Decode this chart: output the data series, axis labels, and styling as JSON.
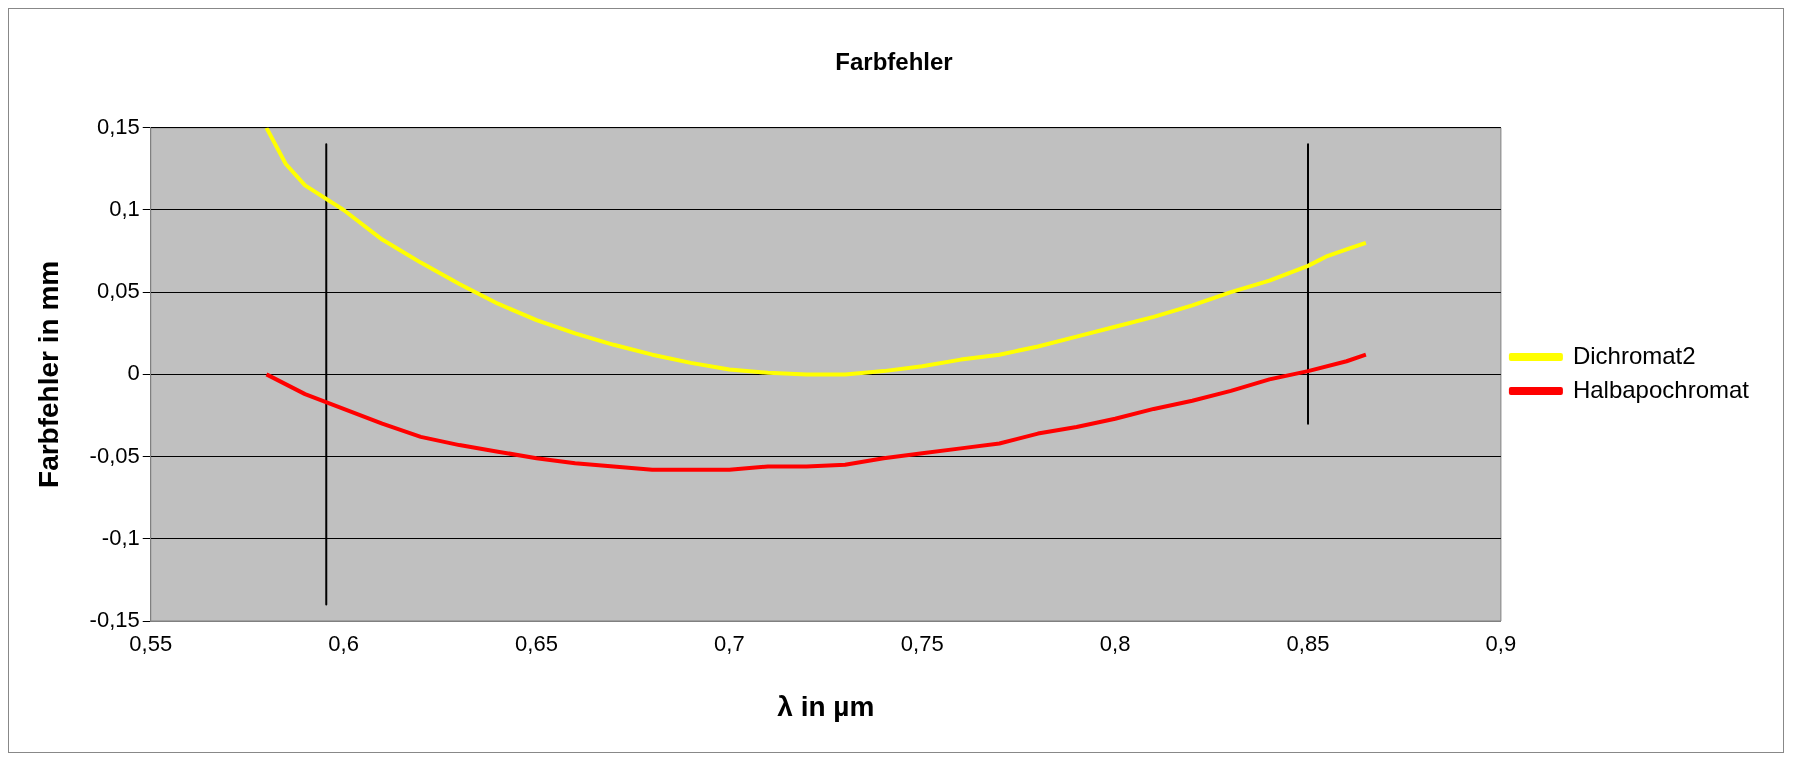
{
  "chart_data": {
    "type": "line",
    "title": "Farbfehler",
    "xlabel": "λ in µm",
    "ylabel": "Farbfehler in mm",
    "xlim": [
      0.55,
      0.9
    ],
    "xticks": [
      {
        "value": 0.55,
        "label": "0,55"
      },
      {
        "value": 0.6,
        "label": "0,6"
      },
      {
        "value": 0.65,
        "label": "0,65"
      },
      {
        "value": 0.7,
        "label": "0,7"
      },
      {
        "value": 0.75,
        "label": "0,75"
      },
      {
        "value": 0.8,
        "label": "0,8"
      },
      {
        "value": 0.85,
        "label": "0,85"
      },
      {
        "value": 0.9,
        "label": "0,9"
      }
    ],
    "ylim": [
      -0.15,
      0.15
    ],
    "yticks": [
      {
        "value": -0.15,
        "label": "-0,15"
      },
      {
        "value": -0.1,
        "label": "-0,1"
      },
      {
        "value": -0.05,
        "label": "-0,05"
      },
      {
        "value": 0,
        "label": "0"
      },
      {
        "value": 0.05,
        "label": "0,05"
      },
      {
        "value": 0.1,
        "label": "0,1"
      },
      {
        "value": 0.15,
        "label": "0,15"
      }
    ],
    "grid": "y",
    "legend": "right",
    "marker": "none",
    "line_style": "solid",
    "series": [
      {
        "name": "Dichromat2",
        "color": "#ffff00",
        "x": [
          0.58,
          0.585,
          0.59,
          0.6,
          0.61,
          0.62,
          0.63,
          0.64,
          0.65,
          0.66,
          0.67,
          0.68,
          0.69,
          0.7,
          0.71,
          0.72,
          0.73,
          0.74,
          0.75,
          0.76,
          0.77,
          0.78,
          0.79,
          0.8,
          0.81,
          0.82,
          0.83,
          0.84,
          0.85,
          0.855,
          0.86,
          0.865
        ],
        "values": [
          0.15,
          0.128,
          0.115,
          0.1,
          0.082,
          0.068,
          0.055,
          0.043,
          0.033,
          0.025,
          0.018,
          0.012,
          0.007,
          0.003,
          0.001,
          0,
          0,
          0.002,
          0.005,
          0.009,
          0.012,
          0.017,
          0.023,
          0.029,
          0.035,
          0.042,
          0.05,
          0.057,
          0.066,
          0.072,
          0.076,
          0.08
        ]
      },
      {
        "name": "Halbapochromat",
        "color": "#ff0000",
        "x": [
          0.58,
          0.59,
          0.6,
          0.61,
          0.62,
          0.63,
          0.64,
          0.65,
          0.66,
          0.67,
          0.68,
          0.69,
          0.7,
          0.71,
          0.72,
          0.73,
          0.74,
          0.75,
          0.76,
          0.77,
          0.78,
          0.79,
          0.8,
          0.81,
          0.82,
          0.83,
          0.84,
          0.85,
          0.86,
          0.865
        ],
        "values": [
          0,
          -0.012,
          -0.021,
          -0.03,
          -0.038,
          -0.043,
          -0.047,
          -0.051,
          -0.054,
          -0.056,
          -0.058,
          -0.058,
          -0.058,
          -0.056,
          -0.056,
          -0.055,
          -0.051,
          -0.048,
          -0.045,
          -0.042,
          -0.036,
          -0.032,
          -0.027,
          -0.021,
          -0.016,
          -0.01,
          -0.003,
          0.002,
          0.008,
          0.012
        ]
      },
      {
        "color": "#000000",
        "x": [
          0.5955,
          0.5955
        ],
        "values": [
          0.14,
          -0.14
        ]
      },
      {
        "color": "#000000",
        "x": [
          0.85,
          0.85
        ],
        "values": [
          0.14,
          -0.03
        ]
      }
    ]
  }
}
